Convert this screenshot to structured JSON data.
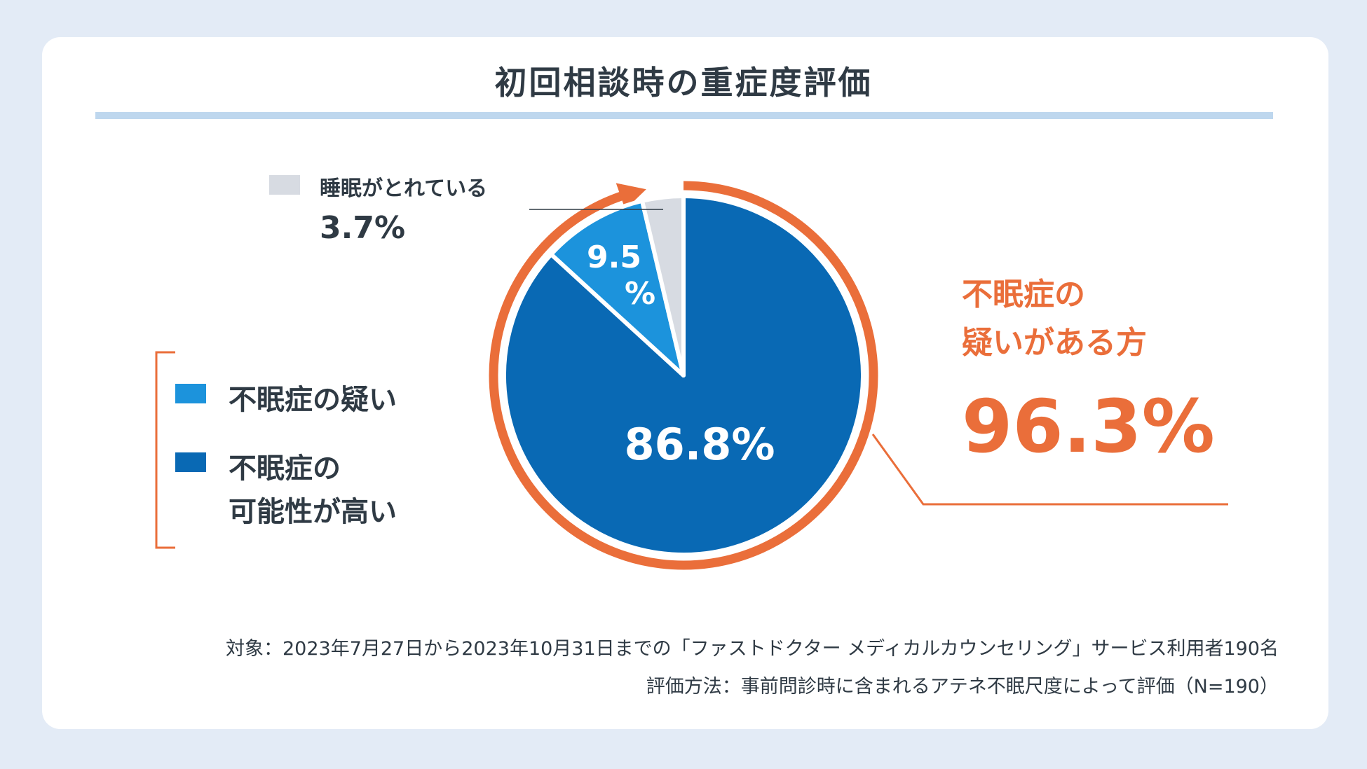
{
  "title": "初回相談時の重症度評価",
  "chart_data": {
    "type": "pie",
    "slices": [
      {
        "name": "不眠症の可能性が高い",
        "value": 86.8,
        "label": "86.8%",
        "color": "#0969b4"
      },
      {
        "name": "不眠症の疑い",
        "value": 9.5,
        "label_line1": "9.5",
        "label_line2": "%",
        "color": "#1c93dc"
      },
      {
        "name": "睡眠がとれている",
        "value": 3.7,
        "label": "3.7%",
        "color": "#d7dbe2"
      }
    ]
  },
  "legend": {
    "sleeping_ok": {
      "label": "睡眠がとれている",
      "value": "3.7%",
      "color": "#d7dbe2"
    },
    "suspected": {
      "label": "不眠症の疑い",
      "color": "#1c93dc"
    },
    "likely": {
      "label_line1": "不眠症の",
      "label_line2": "可能性が高い",
      "color": "#0969b4"
    }
  },
  "callout": {
    "line1": "不眠症の",
    "line2": "疑いがある方",
    "value": "96.3%",
    "color": "#ea6e3a"
  },
  "footnotes": {
    "target": "対象：2023年7月27日から2023年10月31日までの「ファストドクター メディカルカウンセリング」サービス利用者190名",
    "method": "評価方法：事前問診時に含まれるアテネ不眠尺度によって評価（N=190）"
  }
}
